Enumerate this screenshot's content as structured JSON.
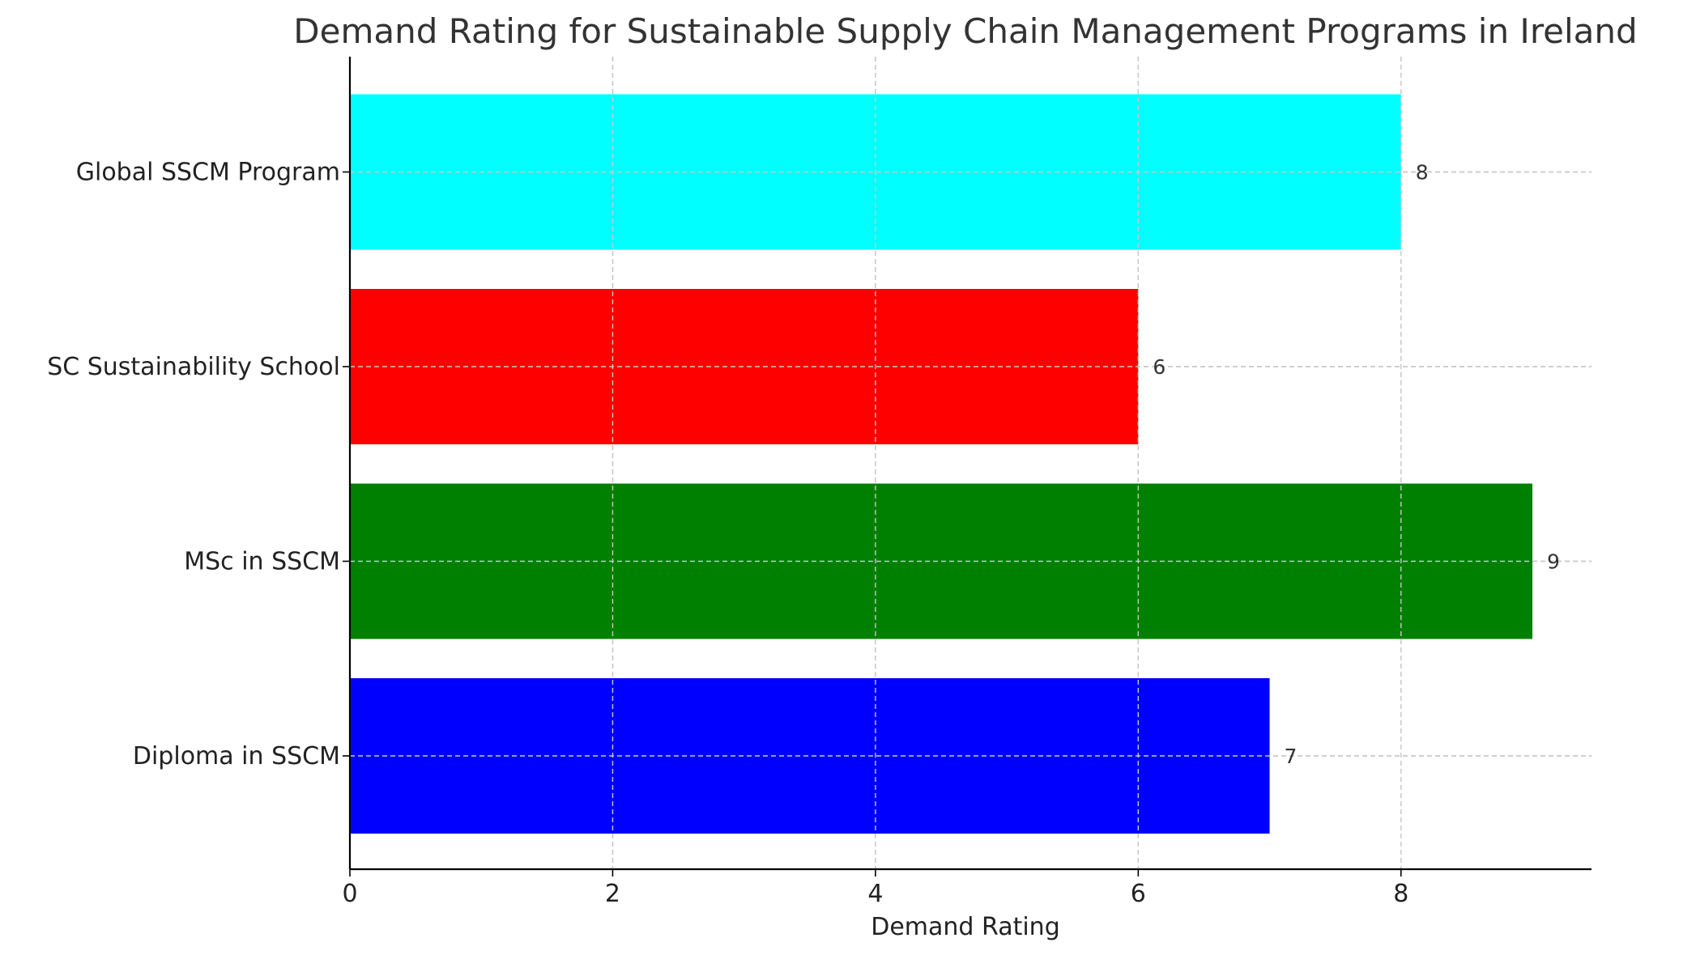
{
  "chart_data": {
    "type": "bar",
    "orientation": "horizontal",
    "title": "Demand Rating for Sustainable Supply Chain Management Programs in Ireland",
    "xlabel": "Demand Rating",
    "ylabel": "",
    "categories": [
      "Diploma in SSCM",
      "MSc in SSCM",
      "SC Sustainability School",
      "Global SSCM Program"
    ],
    "values": [
      7,
      9,
      6,
      8
    ],
    "colors": [
      "#0000ff",
      "#008000",
      "#ff0000",
      "#00ffff"
    ],
    "xlim": [
      0,
      9.45
    ],
    "xticks": [
      0,
      2,
      4,
      6,
      8
    ],
    "grid": true
  }
}
